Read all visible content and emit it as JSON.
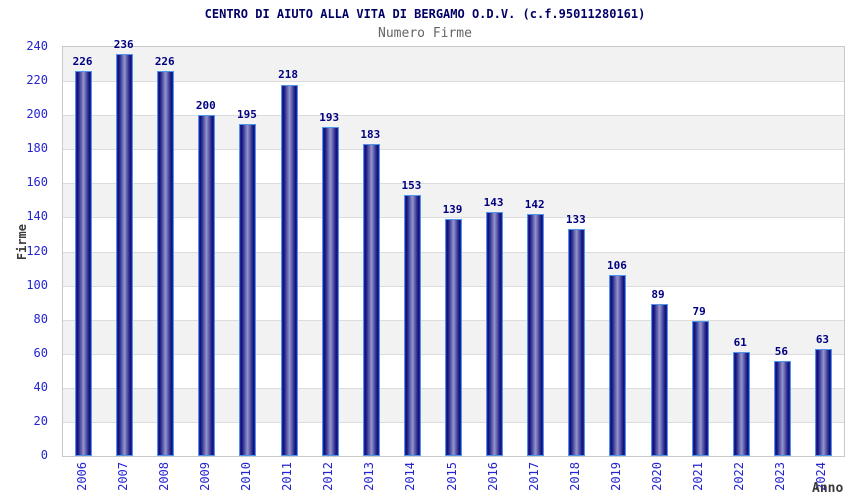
{
  "chart_data": {
    "type": "bar",
    "title": "CENTRO DI AIUTO ALLA VITA DI BERGAMO O.D.V. (c.f.95011280161)",
    "subtitle": "Numero Firme",
    "xlabel": "Anno",
    "ylabel": "Firme",
    "categories": [
      "2006",
      "2007",
      "2008",
      "2009",
      "2010",
      "2011",
      "2012",
      "2013",
      "2014",
      "2015",
      "2016",
      "2017",
      "2018",
      "2019",
      "2020",
      "2021",
      "2022",
      "2023",
      "2024"
    ],
    "values": [
      226,
      236,
      226,
      200,
      195,
      218,
      193,
      183,
      153,
      139,
      143,
      142,
      133,
      106,
      89,
      79,
      61,
      56,
      63
    ],
    "ylim": [
      0,
      240
    ],
    "ytick_step": 20,
    "grid": "horizontal",
    "legend": "none",
    "colors": {
      "title": "#000066",
      "subtitle": "#666666",
      "tick_labels": "#2424d0",
      "value_labels": "#000080",
      "bar_dark": "#10106e",
      "bar_light": "#9596c8",
      "bar_border": "#4d96ec",
      "band_gray": "#f2f2f2",
      "band_white": "#ffffff",
      "gridline": "#dcdcdc",
      "frame": "#c9c9c9",
      "axis_titles": "#3a3a3a"
    }
  }
}
